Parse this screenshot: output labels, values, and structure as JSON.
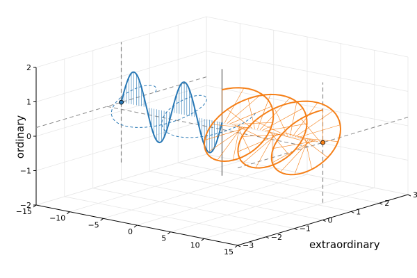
{
  "chart_data": {
    "type": "line3d",
    "axes": {
      "x": {
        "label": "",
        "range": [
          -15,
          15
        ],
        "ticks": [
          -15,
          -10,
          -5,
          0,
          5,
          10,
          15
        ]
      },
      "y": {
        "label": "extraordinary",
        "range": [
          -3,
          3
        ],
        "ticks": [
          -3,
          -2,
          -1,
          0,
          1,
          2,
          3
        ]
      },
      "z": {
        "label": "ordinary",
        "range": [
          -2,
          2
        ],
        "ticks": [
          -2,
          -1,
          0,
          1,
          2
        ]
      }
    },
    "grid": true,
    "legend": "none",
    "colors": {
      "series_blue": "#2878b5",
      "series_orange": "#f57f17",
      "guide": "#888888",
      "axis_center": "#888888",
      "grid": "#e6e6e6",
      "box": "#000000"
    },
    "series": [
      {
        "color_key": "series_blue",
        "description_of_path": "linearly polarized wave along x from x=-15 to x=0, tilted plane",
        "x_range": [
          -15,
          0
        ],
        "amplitude": 1,
        "turns": 2,
        "start_marker": [
          -15,
          0,
          0.25
        ],
        "dashed_companion": true
      },
      {
        "color_key": "series_orange",
        "description_of_path": "circularly polarized helix along x from x=0 to x=15",
        "x_range": [
          0,
          15
        ],
        "amplitude": 1,
        "turns": 3,
        "end_marker": [
          15,
          0,
          0.25
        ]
      }
    ]
  },
  "tick_text": {
    "x": [
      "−15",
      "−10",
      "−5",
      "0",
      "5",
      "10",
      "15"
    ],
    "y": [
      "−3",
      "−2",
      "−1",
      "0",
      "1",
      "2",
      "3"
    ],
    "z": [
      "−2",
      "−1",
      "0",
      "1",
      "2"
    ]
  },
  "labels": {
    "y_axis": "extraordinary",
    "z_axis": "ordinary"
  }
}
